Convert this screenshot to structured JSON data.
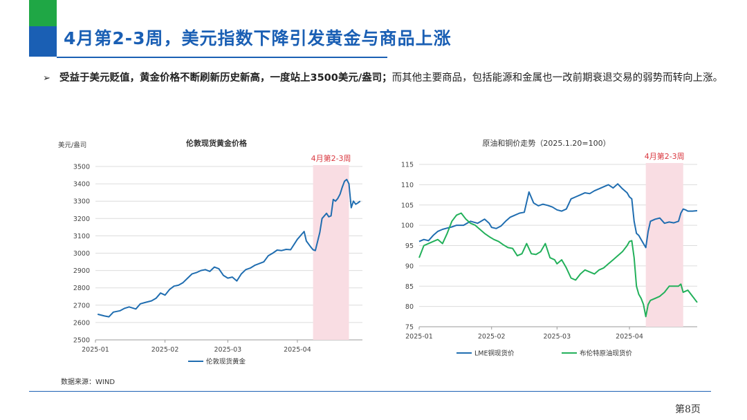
{
  "slide": {
    "title": "4月第2-3周，美元指数下降引发黄金与商品上涨",
    "bullet_bold": "受益于美元贬值，黄金价格不断刷新历史新高，一度站上3500美元/盎司；",
    "bullet_rest": "而其他主要商品，包括能源和金属也一改前期衰退交易的弱势而转向上涨。",
    "bullet_marker": "➢",
    "source": "数据来源：WIND",
    "page_number": "第8页"
  },
  "colors": {
    "brand_blue": "#1a5fb4",
    "brand_green": "#1fa745",
    "gold_line": "#1f6db0",
    "copper_line": "#1f6db0",
    "brent_line": "#22b05a",
    "highlight_band": "#f9dde3",
    "highlight_text": "#d9363e"
  },
  "chart_data": [
    {
      "type": "line",
      "title": "伦敦现货黄金价格",
      "ylabel": "美元/盎司",
      "xlabel": "",
      "ylim": [
        2500,
        3500
      ],
      "yticks": [
        2500,
        2600,
        2700,
        2800,
        2900,
        3000,
        3100,
        3200,
        3300,
        3400,
        3500
      ],
      "xticks": [
        "2025-01",
        "2025-02",
        "2025-03",
        "2025-04"
      ],
      "x_domain": [
        "2025-01-01",
        "2025-04-30"
      ],
      "grid": true,
      "legend": "bottom",
      "highlight": {
        "label": "4月第2-3周",
        "start": "2025-04-08",
        "end": "2025-04-24"
      },
      "series": [
        {
          "name": "伦敦现货黄金",
          "points": [
            [
              "2025-01-02",
              2648
            ],
            [
              "2025-01-05",
              2638
            ],
            [
              "2025-01-07",
              2633
            ],
            [
              "2025-01-09",
              2660
            ],
            [
              "2025-01-12",
              2668
            ],
            [
              "2025-01-14",
              2682
            ],
            [
              "2025-01-16",
              2690
            ],
            [
              "2025-01-19",
              2678
            ],
            [
              "2025-01-21",
              2708
            ],
            [
              "2025-01-23",
              2715
            ],
            [
              "2025-01-26",
              2725
            ],
            [
              "2025-01-28",
              2740
            ],
            [
              "2025-01-30",
              2770
            ],
            [
              "2025-02-01",
              2758
            ],
            [
              "2025-02-03",
              2790
            ],
            [
              "2025-02-05",
              2810
            ],
            [
              "2025-02-07",
              2815
            ],
            [
              "2025-02-09",
              2830
            ],
            [
              "2025-02-11",
              2855
            ],
            [
              "2025-02-13",
              2880
            ],
            [
              "2025-02-15",
              2888
            ],
            [
              "2025-02-17",
              2900
            ],
            [
              "2025-02-19",
              2905
            ],
            [
              "2025-02-21",
              2895
            ],
            [
              "2025-02-23",
              2920
            ],
            [
              "2025-02-25",
              2910
            ],
            [
              "2025-02-27",
              2872
            ],
            [
              "2025-03-01",
              2856
            ],
            [
              "2025-03-03",
              2862
            ],
            [
              "2025-03-05",
              2840
            ],
            [
              "2025-03-07",
              2880
            ],
            [
              "2025-03-09",
              2905
            ],
            [
              "2025-03-11",
              2914
            ],
            [
              "2025-03-13",
              2930
            ],
            [
              "2025-03-15",
              2940
            ],
            [
              "2025-03-17",
              2950
            ],
            [
              "2025-03-19",
              2985
            ],
            [
              "2025-03-21",
              3000
            ],
            [
              "2025-03-23",
              3018
            ],
            [
              "2025-03-25",
              3015
            ],
            [
              "2025-03-27",
              3022
            ],
            [
              "2025-03-29",
              3020
            ],
            [
              "2025-03-31",
              3060
            ],
            [
              "2025-04-01",
              3080
            ],
            [
              "2025-04-02",
              3095
            ],
            [
              "2025-04-03",
              3110
            ],
            [
              "2025-04-04",
              3125
            ],
            [
              "2025-04-05",
              3070
            ],
            [
              "2025-04-07",
              3035
            ],
            [
              "2025-04-08",
              3020
            ],
            [
              "2025-04-09",
              3015
            ],
            [
              "2025-04-11",
              3120
            ],
            [
              "2025-04-12",
              3200
            ],
            [
              "2025-04-14",
              3230
            ],
            [
              "2025-04-15",
              3210
            ],
            [
              "2025-04-16",
              3215
            ],
            [
              "2025-04-17",
              3310
            ],
            [
              "2025-04-18",
              3300
            ],
            [
              "2025-04-19",
              3315
            ],
            [
              "2025-04-20",
              3340
            ],
            [
              "2025-04-21",
              3380
            ],
            [
              "2025-04-22",
              3415
            ],
            [
              "2025-04-23",
              3425
            ],
            [
              "2025-04-24",
              3400
            ],
            [
              "2025-04-25",
              3262
            ],
            [
              "2025-04-26",
              3300
            ],
            [
              "2025-04-27",
              3282
            ],
            [
              "2025-04-28",
              3290
            ],
            [
              "2025-04-29",
              3300
            ]
          ]
        }
      ]
    },
    {
      "type": "line",
      "title": "原油和铜价走势（2025.1.20=100）",
      "ylabel": "",
      "xlabel": "",
      "ylim": [
        75,
        115
      ],
      "yticks": [
        75,
        80,
        85,
        90,
        95,
        100,
        105,
        110,
        115
      ],
      "xticks": [
        "2025-01",
        "2025-02",
        "2025-03",
        "2025-04"
      ],
      "x_domain": [
        "2025-01-01",
        "2025-04-30"
      ],
      "grid": true,
      "legend": "bottom",
      "highlight": {
        "label": "4月第2-3周",
        "start": "2025-04-08",
        "end": "2025-04-24"
      },
      "series": [
        {
          "name": "LME铜现货价",
          "points": [
            [
              "2025-01-01",
              96.0
            ],
            [
              "2025-01-03",
              96.5
            ],
            [
              "2025-01-05",
              96.2
            ],
            [
              "2025-01-07",
              97.5
            ],
            [
              "2025-01-09",
              98.5
            ],
            [
              "2025-01-11",
              99.0
            ],
            [
              "2025-01-13",
              99.3
            ],
            [
              "2025-01-15",
              99.6
            ],
            [
              "2025-01-17",
              100.0
            ],
            [
              "2025-01-20",
              100.0
            ],
            [
              "2025-01-23",
              101.0
            ],
            [
              "2025-01-26",
              100.5
            ],
            [
              "2025-01-29",
              101.5
            ],
            [
              "2025-01-31",
              100.5
            ],
            [
              "2025-02-01",
              99.5
            ],
            [
              "2025-02-03",
              99.2
            ],
            [
              "2025-02-05",
              99.8
            ],
            [
              "2025-02-07",
              101.0
            ],
            [
              "2025-02-09",
              102.0
            ],
            [
              "2025-02-11",
              102.5
            ],
            [
              "2025-02-13",
              103.0
            ],
            [
              "2025-02-15",
              103.2
            ],
            [
              "2025-02-17",
              108.2
            ],
            [
              "2025-02-19",
              105.5
            ],
            [
              "2025-02-21",
              104.8
            ],
            [
              "2025-02-23",
              105.2
            ],
            [
              "2025-02-25",
              104.9
            ],
            [
              "2025-02-27",
              104.5
            ],
            [
              "2025-03-01",
              103.8
            ],
            [
              "2025-03-03",
              103.5
            ],
            [
              "2025-03-05",
              104.0
            ],
            [
              "2025-03-07",
              106.5
            ],
            [
              "2025-03-09",
              107.0
            ],
            [
              "2025-03-11",
              107.5
            ],
            [
              "2025-03-13",
              108.0
            ],
            [
              "2025-03-15",
              107.8
            ],
            [
              "2025-03-17",
              108.5
            ],
            [
              "2025-03-19",
              109.0
            ],
            [
              "2025-03-21",
              109.5
            ],
            [
              "2025-03-23",
              110.0
            ],
            [
              "2025-03-25",
              109.2
            ],
            [
              "2025-03-27",
              110.2
            ],
            [
              "2025-03-29",
              109.0
            ],
            [
              "2025-03-31",
              108.0
            ],
            [
              "2025-04-01",
              107.0
            ],
            [
              "2025-04-02",
              106.5
            ],
            [
              "2025-04-03",
              101.0
            ],
            [
              "2025-04-04",
              98.0
            ],
            [
              "2025-04-05",
              97.5
            ],
            [
              "2025-04-06",
              96.5
            ],
            [
              "2025-04-07",
              95.5
            ],
            [
              "2025-04-08",
              94.5
            ],
            [
              "2025-04-09",
              98.5
            ],
            [
              "2025-04-10",
              101.0
            ],
            [
              "2025-04-12",
              101.5
            ],
            [
              "2025-04-14",
              101.8
            ],
            [
              "2025-04-16",
              100.5
            ],
            [
              "2025-04-18",
              100.8
            ],
            [
              "2025-04-20",
              100.6
            ],
            [
              "2025-04-22",
              101.0
            ],
            [
              "2025-04-23",
              103.0
            ],
            [
              "2025-04-24",
              104.0
            ],
            [
              "2025-04-25",
              103.8
            ],
            [
              "2025-04-26",
              103.5
            ],
            [
              "2025-04-28",
              103.5
            ],
            [
              "2025-04-30",
              103.6
            ]
          ]
        },
        {
          "name": "布伦特原油现货价",
          "points": [
            [
              "2025-01-01",
              92.0
            ],
            [
              "2025-01-03",
              95.0
            ],
            [
              "2025-01-05",
              95.5
            ],
            [
              "2025-01-07",
              96.0
            ],
            [
              "2025-01-09",
              96.5
            ],
            [
              "2025-01-11",
              95.5
            ],
            [
              "2025-01-13",
              98.0
            ],
            [
              "2025-01-15",
              101.0
            ],
            [
              "2025-01-17",
              102.5
            ],
            [
              "2025-01-19",
              103.0
            ],
            [
              "2025-01-21",
              101.5
            ],
            [
              "2025-01-23",
              100.5
            ],
            [
              "2025-01-25",
              100.0
            ],
            [
              "2025-01-27",
              99.0
            ],
            [
              "2025-01-29",
              98.0
            ],
            [
              "2025-01-31",
              97.2
            ],
            [
              "2025-02-02",
              96.5
            ],
            [
              "2025-02-04",
              96.0
            ],
            [
              "2025-02-06",
              95.2
            ],
            [
              "2025-02-08",
              94.5
            ],
            [
              "2025-02-10",
              94.3
            ],
            [
              "2025-02-12",
              92.5
            ],
            [
              "2025-02-14",
              93.0
            ],
            [
              "2025-02-16",
              95.5
            ],
            [
              "2025-02-18",
              93.0
            ],
            [
              "2025-02-20",
              92.8
            ],
            [
              "2025-02-22",
              93.5
            ],
            [
              "2025-02-24",
              95.5
            ],
            [
              "2025-02-26",
              92.0
            ],
            [
              "2025-02-28",
              91.5
            ],
            [
              "2025-03-01",
              90.5
            ],
            [
              "2025-03-03",
              91.5
            ],
            [
              "2025-03-05",
              89.5
            ],
            [
              "2025-03-07",
              87.0
            ],
            [
              "2025-03-09",
              86.5
            ],
            [
              "2025-03-11",
              88.0
            ],
            [
              "2025-03-13",
              89.0
            ],
            [
              "2025-03-15",
              88.5
            ],
            [
              "2025-03-17",
              88.0
            ],
            [
              "2025-03-19",
              89.0
            ],
            [
              "2025-03-21",
              89.5
            ],
            [
              "2025-03-23",
              90.5
            ],
            [
              "2025-03-25",
              91.5
            ],
            [
              "2025-03-27",
              92.5
            ],
            [
              "2025-03-29",
              93.5
            ],
            [
              "2025-03-31",
              95.0
            ],
            [
              "2025-04-01",
              96.0
            ],
            [
              "2025-04-02",
              96.2
            ],
            [
              "2025-04-03",
              92.0
            ],
            [
              "2025-04-04",
              85.0
            ],
            [
              "2025-04-05",
              83.0
            ],
            [
              "2025-04-06",
              82.0
            ],
            [
              "2025-04-07",
              80.5
            ],
            [
              "2025-04-08",
              77.5
            ],
            [
              "2025-04-09",
              80.5
            ],
            [
              "2025-04-10",
              81.5
            ],
            [
              "2025-04-12",
              82.0
            ],
            [
              "2025-04-14",
              82.5
            ],
            [
              "2025-04-16",
              83.5
            ],
            [
              "2025-04-18",
              85.0
            ],
            [
              "2025-04-20",
              85.0
            ],
            [
              "2025-04-22",
              85.0
            ],
            [
              "2025-04-23",
              85.5
            ],
            [
              "2025-04-24",
              83.5
            ],
            [
              "2025-04-26",
              84.0
            ],
            [
              "2025-04-28",
              82.5
            ],
            [
              "2025-04-30",
              81.0
            ]
          ]
        }
      ]
    }
  ]
}
